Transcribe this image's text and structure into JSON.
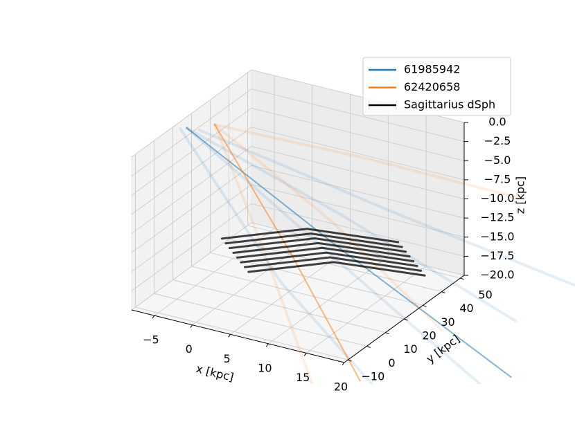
{
  "chart_data": {
    "type": "line3d",
    "xlabel": "x [kpc]",
    "ylabel": "y [kpc]",
    "zlabel": "z [kpc]",
    "xlim": [
      -8,
      20
    ],
    "ylim": [
      -12,
      52
    ],
    "zlim": [
      -20,
      0
    ],
    "xticks": [
      {
        "value": -5,
        "label": "−5"
      },
      0,
      5,
      10,
      15,
      20
    ],
    "yticks": [
      {
        "value": -10,
        "label": "−10"
      },
      0,
      10,
      20,
      30,
      40,
      50
    ],
    "zticks": [
      {
        "value": 0,
        "label": "0.0"
      },
      {
        "value": -2.5,
        "label": "−2.5"
      },
      {
        "value": -5,
        "label": "−5.0"
      },
      {
        "value": -7.5,
        "label": "−7.5"
      },
      {
        "value": -10,
        "label": "−10.0"
      },
      {
        "value": -12.5,
        "label": "−12.5"
      },
      {
        "value": -15,
        "label": "−15.0"
      },
      {
        "value": -17.5,
        "label": "−17.5"
      },
      {
        "value": -20,
        "label": "−20.0"
      }
    ],
    "grid": true,
    "legend": "upper right",
    "series": [
      {
        "name": "61985942",
        "color": "#1f77b4",
        "tracks": [
          {
            "x": [
              -6.5,
              10,
              28
            ],
            "y": [
              11.4,
              28,
              44.5
            ],
            "z": [
              0,
              -15,
              -30
            ]
          },
          {
            "x": [
              -6.5,
              12,
              30
            ],
            "y": [
              11.4,
              20,
              30
            ],
            "z": [
              0,
              -15,
              -30
            ]
          },
          {
            "x": [
              -6.5,
              8,
              26
            ],
            "y": [
              11.4,
              35,
              55
            ],
            "z": [
              0,
              -12,
              -25
            ]
          },
          {
            "x": [
              -7,
              5,
              22
            ],
            "y": [
              10,
              15,
              20
            ],
            "z": [
              0,
              -18,
              -35
            ]
          },
          {
            "x": [
              -5,
              15,
              35
            ],
            "y": [
              12,
              35,
              60
            ],
            "z": [
              0,
              -10,
              -20
            ]
          }
        ]
      },
      {
        "name": "62420658",
        "color": "#ff7f0e",
        "tracks": [
          {
            "x": [
              -4.2,
              5,
              13.7
            ],
            "y": [
              17,
              20,
              22
            ],
            "z": [
              0,
              -15,
              -30
            ]
          },
          {
            "x": [
              -4.2,
              3,
              10
            ],
            "y": [
              17,
              15,
              12
            ],
            "z": [
              0,
              -15,
              -30
            ]
          },
          {
            "x": [
              -4.2,
              10,
              25
            ],
            "y": [
              17,
              40,
              60
            ],
            "z": [
              0,
              -5,
              -10
            ]
          },
          {
            "x": [
              -4.2,
              8,
              20
            ],
            "y": [
              17,
              30,
              40
            ],
            "z": [
              0,
              -12,
              -25
            ]
          }
        ]
      },
      {
        "name": "Sagittarius dSph",
        "color": "#000000",
        "tracks": [
          {
            "x": [
              -3.6,
              5,
              14.2
            ],
            "y": [
              18.4,
              29,
              40.3
            ],
            "z": [
              -15,
              -13.5,
              -15
            ]
          },
          {
            "x": [
              -3.1,
              5.5,
              14.7
            ],
            "y": [
              18.4,
              29,
              40.3
            ],
            "z": [
              -15.5,
              -14,
              -15.5
            ]
          },
          {
            "x": [
              -2.6,
              6,
              15.2
            ],
            "y": [
              18.4,
              29,
              40.3
            ],
            "z": [
              -16,
              -14.5,
              -16
            ]
          },
          {
            "x": [
              -2.1,
              6.5,
              15.7
            ],
            "y": [
              18.4,
              29,
              40.3
            ],
            "z": [
              -16.5,
              -15,
              -16.5
            ]
          },
          {
            "x": [
              -1.6,
              7,
              16.2
            ],
            "y": [
              18.4,
              29,
              40.3
            ],
            "z": [
              -17,
              -15.5,
              -17
            ]
          },
          {
            "x": [
              -1.1,
              7.5,
              16.7
            ],
            "y": [
              18.4,
              29,
              40.3
            ],
            "z": [
              -17.5,
              -16,
              -17.5
            ]
          },
          {
            "x": [
              -0.6,
              8,
              17.2
            ],
            "y": [
              18.4,
              29,
              40.3
            ],
            "z": [
              -18,
              -16.5,
              -18
            ]
          },
          {
            "x": [
              -0.1,
              8.5,
              17.7
            ],
            "y": [
              18.4,
              29,
              40.3
            ],
            "z": [
              -18.5,
              -17,
              -18.5
            ]
          }
        ]
      }
    ]
  }
}
